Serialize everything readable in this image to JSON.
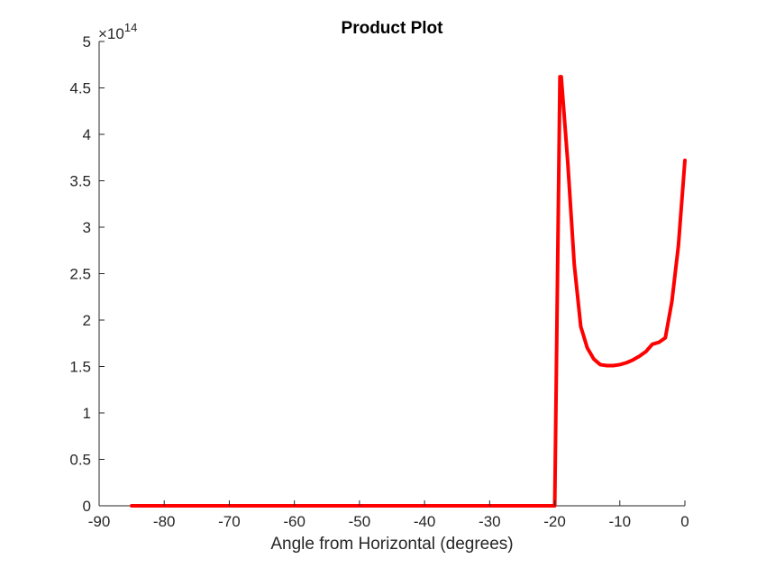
{
  "chart_data": {
    "type": "line",
    "title": "Product Plot",
    "xlabel": "Angle from Horizontal (degrees)",
    "ylabel": "",
    "xlim": [
      -90,
      0
    ],
    "ylim": [
      0,
      5
    ],
    "xticks": [
      -90,
      -80,
      -70,
      -60,
      -50,
      -40,
      -30,
      -20,
      -10,
      0
    ],
    "xtick_labels": [
      "-90",
      "-80",
      "-70",
      "-60",
      "-50",
      "-40",
      "-30",
      "-20",
      "-10",
      "0"
    ],
    "yticks": [
      0,
      0.5,
      1,
      1.5,
      2,
      2.5,
      3,
      3.5,
      4,
      4.5,
      5
    ],
    "ytick_labels": [
      "0",
      "0.5",
      "1",
      "1.5",
      "2",
      "2.5",
      "3",
      "3.5",
      "4",
      "4.5",
      "5"
    ],
    "y_exponent": {
      "base": "×10",
      "power": "14"
    },
    "grid": false,
    "series": [
      {
        "color": "#ff0000",
        "x": [
          -85,
          -80,
          -70,
          -60,
          -50,
          -40,
          -30,
          -21,
          -20,
          -19.2,
          -19,
          -18,
          -17,
          -16,
          -15,
          -14,
          -13,
          -12,
          -11,
          -10,
          -9,
          -8,
          -7,
          -6,
          -5,
          -4,
          -3,
          -2,
          -1,
          0
        ],
        "y": [
          0,
          0,
          0,
          0,
          0,
          0,
          0,
          0,
          0,
          4.62,
          4.62,
          3.7,
          2.6,
          1.93,
          1.7,
          1.58,
          1.52,
          1.51,
          1.51,
          1.52,
          1.54,
          1.57,
          1.61,
          1.66,
          1.74,
          1.76,
          1.81,
          2.2,
          2.8,
          3.72
        ]
      }
    ]
  }
}
